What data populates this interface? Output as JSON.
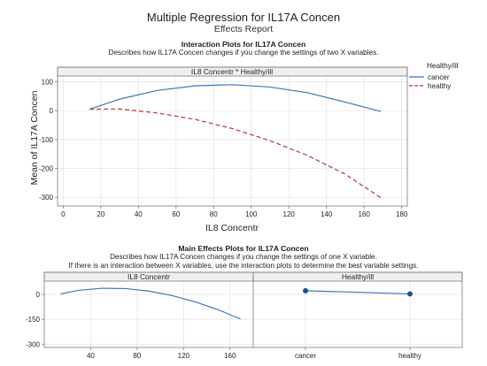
{
  "header": {
    "title": "Multiple Regression for IL17A Concen",
    "subtitle": "Effects Report"
  },
  "interaction": {
    "title": "Interaction Plots for IL17A Concen",
    "description": "Describes how IL17A Concen changes if you change the settings of two X variables."
  },
  "main_effects": {
    "title": "Main Effects Plots for IL17A Concen",
    "description_1": "Describes how IL17A Concen changes if you change the settings of one X variable.",
    "description_2": "If there is an interaction between X variables, use the interaction plots to determine the best variable settings."
  },
  "colors": {
    "cancer": "#3b78b4",
    "healthy": "#b03a36",
    "main_line": "#3b78b4",
    "marker": "#1f4e8c",
    "frame": "#7a7a7a",
    "grid": "#e3e3e3"
  },
  "chart_data": [
    {
      "type": "line",
      "panel_label": "IL8 Concentr * Healthy/ill",
      "xlabel": "IL8 Concentr",
      "ylabel": "Mean of IL17A Concen",
      "xlim": [
        -3,
        183
      ],
      "ylim": [
        -330,
        120
      ],
      "x_ticks": [
        0,
        20,
        40,
        60,
        80,
        100,
        120,
        140,
        160,
        180
      ],
      "y_ticks": [
        100,
        0,
        -100,
        -200,
        -300
      ],
      "grid": true,
      "legend_title": "Healthy/ill",
      "legend_position": "right",
      "series": [
        {
          "name": "cancer",
          "x": [
            14,
            30,
            50,
            70,
            90,
            110,
            130,
            150,
            169
          ],
          "y": [
            5,
            40,
            70,
            86,
            90,
            82,
            62,
            30,
            -3
          ]
        },
        {
          "name": "healthy",
          "x": [
            14,
            30,
            50,
            70,
            90,
            110,
            130,
            150,
            169
          ],
          "y": [
            5,
            6,
            -8,
            -30,
            -62,
            -104,
            -155,
            -220,
            -302
          ]
        }
      ]
    },
    {
      "type": "line",
      "panel_label": "IL8 Concentr",
      "ylabel": "",
      "xlim": [
        0,
        180
      ],
      "ylim": [
        -320,
        80
      ],
      "x_ticks": [
        40,
        80,
        120,
        160
      ],
      "y_ticks": [
        0,
        -150,
        -300
      ],
      "grid": true,
      "series": [
        {
          "x": [
            14,
            30,
            50,
            70,
            90,
            110,
            130,
            150,
            169
          ],
          "y": [
            3,
            25,
            37,
            35,
            20,
            -7,
            -45,
            -93,
            -148
          ]
        }
      ]
    },
    {
      "type": "line",
      "panel_label": "Healthy/ill",
      "categories": [
        "cancer",
        "healthy"
      ],
      "values": [
        22,
        3
      ],
      "ylim": [
        -320,
        80
      ],
      "grid": true
    }
  ]
}
